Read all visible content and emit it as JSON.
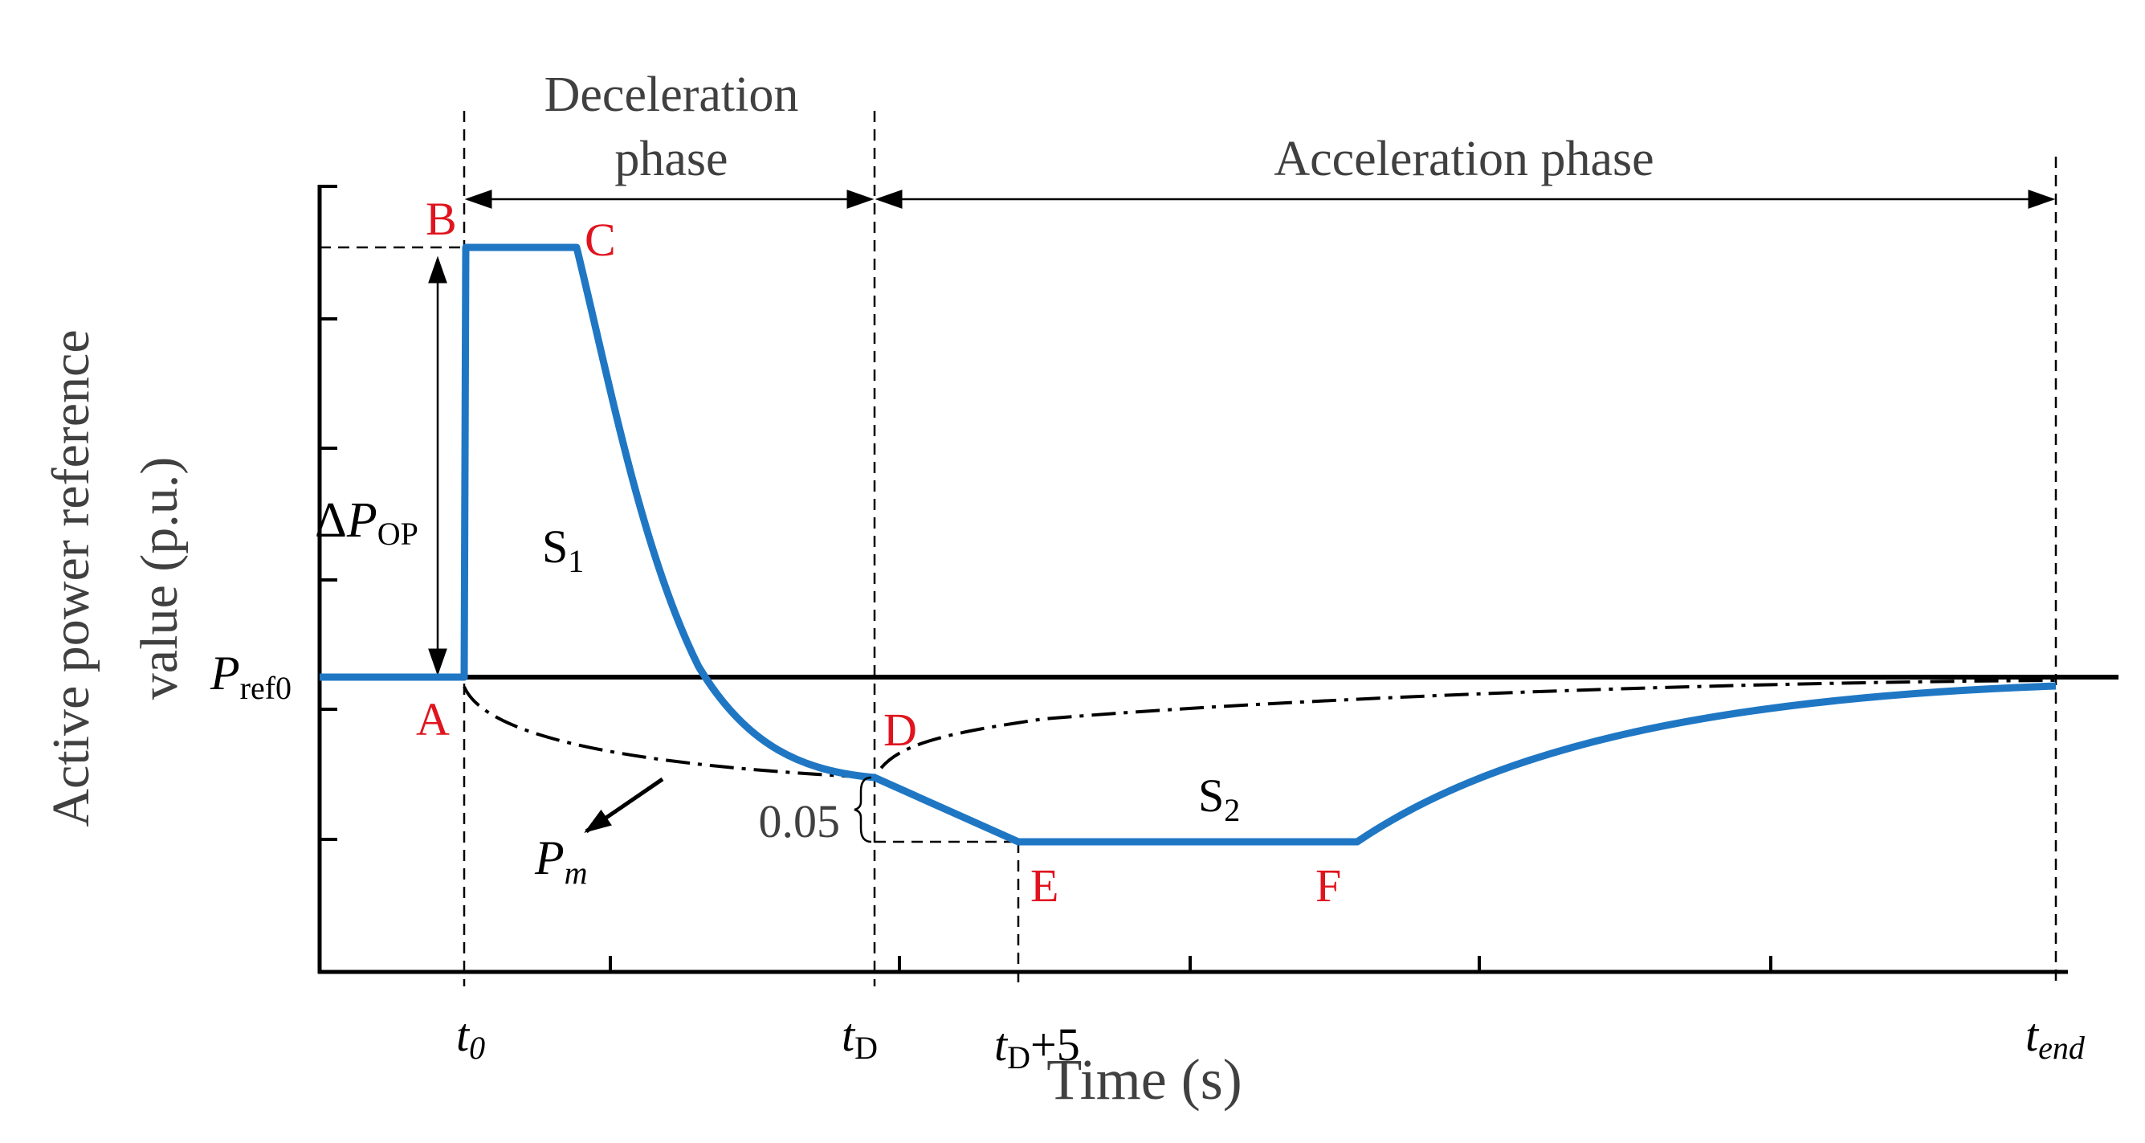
{
  "axes": {
    "ylabel_line1": "Active power reference",
    "ylabel_line2": "value (p.u.)",
    "xlabel": "Time (s)"
  },
  "phases": {
    "deceleration_line1": "Deceleration",
    "deceleration_line2": "phase",
    "acceleration": "Acceleration phase"
  },
  "points": {
    "A": "A",
    "B": "B",
    "C": "C",
    "D": "D",
    "E": "E",
    "F": "F"
  },
  "areas": {
    "s1_base": "S",
    "s1_sub": "1",
    "s2_base": "S",
    "s2_sub": "2"
  },
  "labels": {
    "pref0_base": "P",
    "pref0_sub": "ref0",
    "delta_symbol": "Δ",
    "delta_p": "P",
    "delta_sub": "OP",
    "pm_base": "P",
    "pm_sub": "m",
    "offset_value": "0.05"
  },
  "ticks": {
    "t0_base": "t",
    "t0_sub": "0",
    "tD_base": "t",
    "tD_sub": "D",
    "tD5_base": "t",
    "tD5_sub": "D",
    "tD5_suffix": "+5",
    "tend_base": "t",
    "tend_sub": "end"
  },
  "colors": {
    "curve": "#1f77c4",
    "point_label": "#e0141e",
    "axis": "#000000",
    "text_gray": "#404040"
  }
}
